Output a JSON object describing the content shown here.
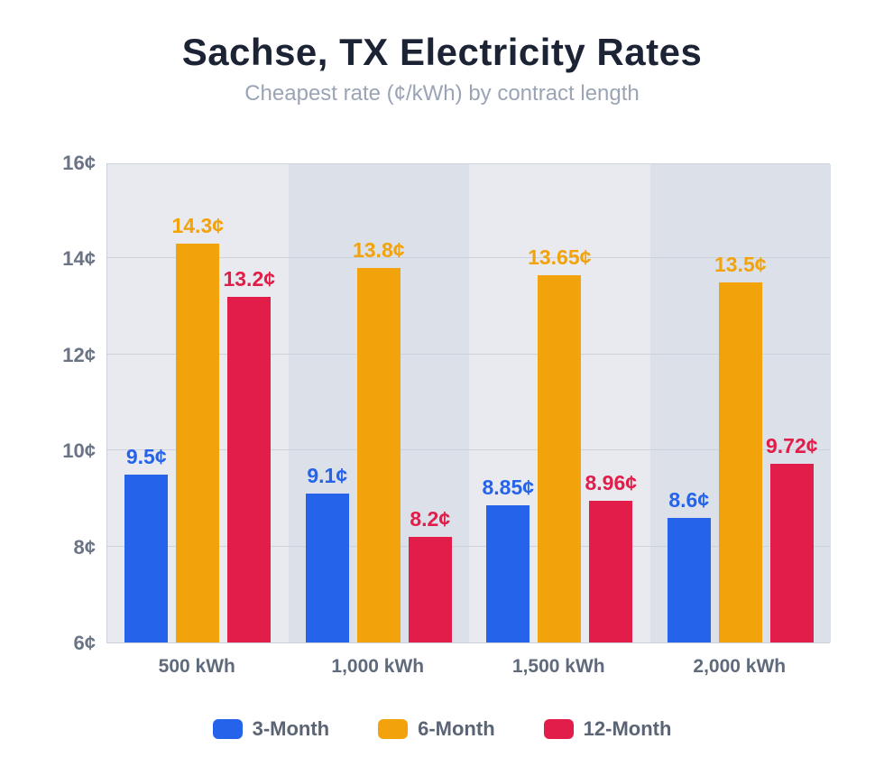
{
  "header": {
    "title": "Sachse, TX Electricity Rates",
    "subtitle": "Cheapest rate (¢/kWh) by contract length"
  },
  "chart_data": {
    "type": "bar",
    "title": "Sachse, TX Electricity Rates",
    "subtitle": "Cheapest rate (¢/kWh) by contract length",
    "categories": [
      "500 kWh",
      "1,000 kWh",
      "1,500 kWh",
      "2,000 kWh"
    ],
    "series": [
      {
        "name": "3-Month",
        "color": "#2563eb",
        "values": [
          9.5,
          9.1,
          8.85,
          8.6
        ],
        "labels": [
          "9.5¢",
          "9.1¢",
          "8.85¢",
          "8.6¢"
        ]
      },
      {
        "name": "6-Month",
        "color": "#f2a30c",
        "values": [
          14.3,
          13.8,
          13.65,
          13.5
        ],
        "labels": [
          "14.3¢",
          "13.8¢",
          "13.65¢",
          "13.5¢"
        ]
      },
      {
        "name": "12-Month",
        "color": "#e21d49",
        "values": [
          13.2,
          8.2,
          8.96,
          9.72
        ],
        "labels": [
          "13.2¢",
          "8.2¢",
          "8.96¢",
          "9.72¢"
        ]
      }
    ],
    "xlabel": "",
    "ylabel": "",
    "ylim": [
      6,
      16
    ],
    "yticks": [
      6,
      8,
      10,
      12,
      14,
      16
    ],
    "ytick_labels": [
      "6¢",
      "8¢",
      "10¢",
      "12¢",
      "14¢",
      "16¢"
    ],
    "grid": true,
    "legend_position": "bottom",
    "band_colors": [
      "#e8eaef",
      "#dbe0e9"
    ]
  },
  "legend": {
    "items": [
      {
        "label": "3-Month",
        "color": "#2563eb"
      },
      {
        "label": "6-Month",
        "color": "#f2a30c"
      },
      {
        "label": "12-Month",
        "color": "#e21d49"
      }
    ]
  }
}
